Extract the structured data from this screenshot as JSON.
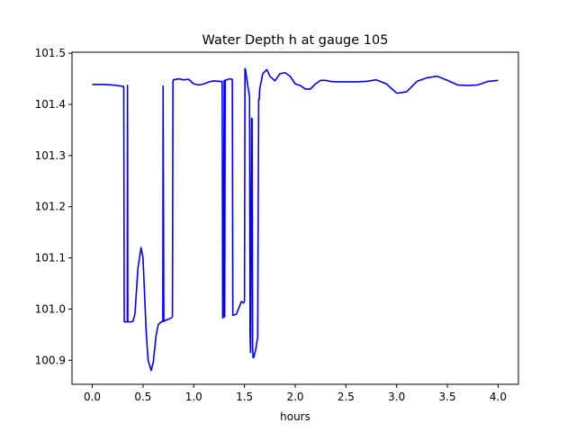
{
  "chart_data": {
    "type": "line",
    "title": "Water Depth h at gauge 105",
    "xlabel": "hours",
    "ylabel": "",
    "xlim": [
      -0.2,
      4.2
    ],
    "ylim": [
      100.853,
      101.502
    ],
    "xticks": [
      0.0,
      0.5,
      1.0,
      1.5,
      2.0,
      2.5,
      3.0,
      3.5,
      4.0
    ],
    "xtick_labels": [
      "0.0",
      "0.5",
      "1.0",
      "1.5",
      "2.0",
      "2.5",
      "3.0",
      "3.5",
      "4.0"
    ],
    "yticks": [
      100.9,
      101.0,
      101.1,
      101.2,
      101.3,
      101.4,
      101.5
    ],
    "ytick_labels": [
      "100.9",
      "101.0",
      "101.1",
      "101.2",
      "101.3",
      "101.4",
      "101.5"
    ],
    "grid": false,
    "line_color": "#0000ff",
    "series": [
      {
        "name": "",
        "x": [
          0.0,
          0.1,
          0.2,
          0.28,
          0.31,
          0.315,
          0.335,
          0.345,
          0.347,
          0.35,
          0.38,
          0.4,
          0.42,
          0.45,
          0.48,
          0.5,
          0.53,
          0.55,
          0.58,
          0.6,
          0.63,
          0.65,
          0.68,
          0.695,
          0.698,
          0.705,
          0.72,
          0.75,
          0.78,
          0.79,
          0.795,
          0.8,
          0.85,
          0.9,
          0.95,
          1.0,
          1.05,
          1.1,
          1.15,
          1.2,
          1.25,
          1.28,
          1.285,
          1.29,
          1.3,
          1.305,
          1.31,
          1.35,
          1.38,
          1.385,
          1.39,
          1.42,
          1.45,
          1.47,
          1.49,
          1.5,
          1.505,
          1.51,
          1.53,
          1.55,
          1.555,
          1.56,
          1.57,
          1.575,
          1.58,
          1.585,
          1.59,
          1.61,
          1.63,
          1.64,
          1.645,
          1.65,
          1.68,
          1.72,
          1.75,
          1.8,
          1.85,
          1.9,
          1.95,
          2.0,
          2.05,
          2.1,
          2.15,
          2.2,
          2.25,
          2.3,
          2.35,
          2.4,
          2.5,
          2.6,
          2.7,
          2.8,
          2.9,
          3.0,
          3.05,
          3.1,
          3.15,
          3.2,
          3.3,
          3.4,
          3.5,
          3.6,
          3.7,
          3.8,
          3.9,
          4.0
        ],
        "y": [
          101.439,
          101.439,
          101.438,
          101.436,
          101.435,
          100.975,
          100.975,
          100.975,
          101.437,
          100.975,
          100.975,
          100.976,
          100.99,
          101.08,
          101.12,
          101.1,
          100.96,
          100.9,
          100.88,
          100.895,
          100.95,
          100.97,
          100.975,
          100.976,
          101.436,
          100.976,
          100.978,
          100.98,
          100.983,
          100.985,
          101.445,
          101.448,
          101.45,
          101.448,
          101.449,
          101.44,
          101.438,
          101.44,
          101.444,
          101.446,
          101.445,
          101.445,
          100.983,
          100.983,
          101.447,
          100.985,
          101.447,
          101.45,
          101.449,
          100.988,
          100.988,
          100.99,
          101.005,
          101.015,
          101.012,
          101.015,
          101.47,
          101.468,
          101.44,
          101.415,
          100.95,
          100.915,
          101.373,
          101.372,
          100.925,
          100.905,
          100.905,
          100.92,
          100.945,
          101.41,
          101.41,
          101.43,
          101.46,
          101.468,
          101.455,
          101.446,
          101.46,
          101.462,
          101.455,
          101.44,
          101.437,
          101.43,
          101.43,
          101.44,
          101.447,
          101.447,
          101.445,
          101.444,
          101.444,
          101.444,
          101.445,
          101.448,
          101.44,
          101.422,
          101.423,
          101.425,
          101.435,
          101.445,
          101.452,
          101.455,
          101.447,
          101.438,
          101.437,
          101.438,
          101.445,
          101.447
        ]
      }
    ]
  }
}
